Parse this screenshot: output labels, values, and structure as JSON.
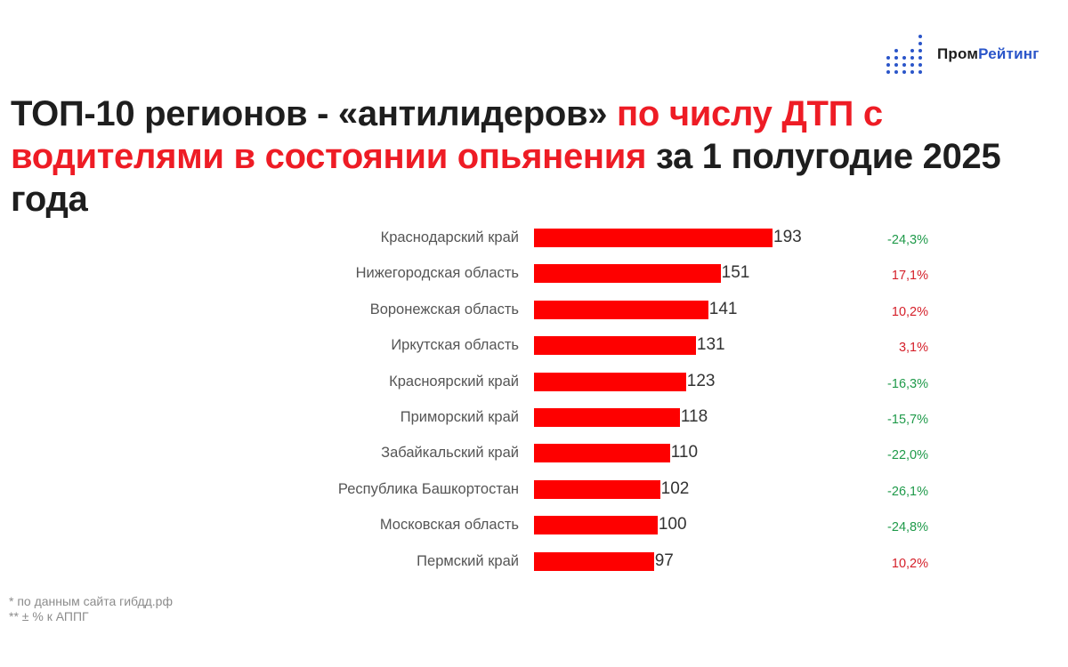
{
  "logo": {
    "part1": "Пром",
    "part2": "Рейтинг",
    "color_dark": "#1d1d1d",
    "color_accent": "#2a55c9"
  },
  "title": {
    "segment1": "ТОП-10 регионов - «антилидеров» ",
    "segment2_red": "по числу ДТП с водителями в состоянии опьянения",
    "segment3": " за 1 полугодие 2025 года"
  },
  "footnotes": {
    "line1": "* по данным сайта гибдд.рф",
    "line2": "** ± % к АППГ"
  },
  "colors": {
    "bar": "#fe0000",
    "title_red": "#ee1c25",
    "negative_delta": "#1f9a4a",
    "positive_delta": "#d5202a"
  },
  "chart_data": {
    "type": "bar",
    "orientation": "horizontal",
    "title": "ТОП-10 регионов - «антилидеров» по числу ДТП с водителями в состоянии опьянения за 1 полугодие 2025 года",
    "xlabel": "",
    "ylabel": "",
    "grid": false,
    "legend": "none",
    "categories": [
      "Краснодарский край",
      "Нижегородская область",
      "Воронежская область",
      "Иркутская область",
      "Красноярский край",
      "Приморский край",
      "Забайкальский край",
      "Республика Башкортостан",
      "Московская область",
      "Пермский край"
    ],
    "values": [
      193,
      151,
      141,
      131,
      123,
      118,
      110,
      102,
      100,
      97
    ],
    "value_labels": [
      "193",
      "151",
      "141",
      "131",
      "123",
      "118",
      "110",
      "102",
      "100",
      "97"
    ],
    "change_vs_prev_year": [
      "-24,3%",
      "17,1%",
      "10,2%",
      "3,1%",
      "-16,3%",
      "-15,7%",
      "-22,0%",
      "-26,1%",
      "-24,8%",
      "10,2%"
    ],
    "change_vs_prev_year_numeric": [
      -24.3,
      17.1,
      10.2,
      3.1,
      -16.3,
      -15.7,
      -22.0,
      -26.1,
      -24.8,
      10.2
    ],
    "annotations": [
      "* по данным сайта гибдд.рф",
      "** ± % к АППГ"
    ]
  }
}
